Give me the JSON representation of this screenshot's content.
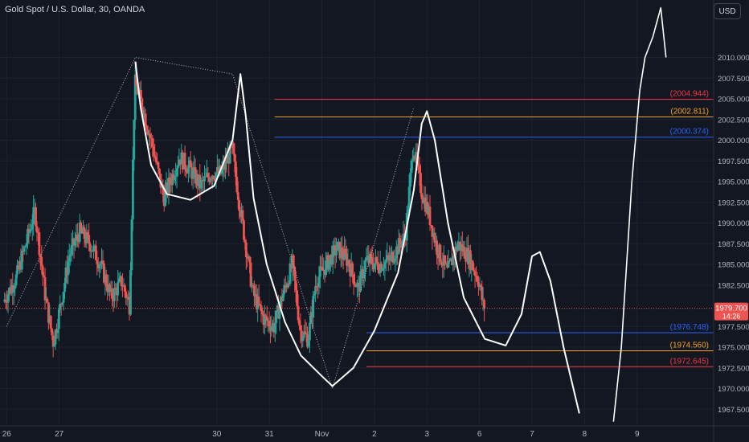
{
  "header": {
    "title": "Gold Spot / U.S. Dollar, 30, OANDA",
    "currency_label": "USD"
  },
  "colors": {
    "bg": "#131722",
    "bull": "#26a69a",
    "bear": "#ef5350",
    "grid": "#1e222d",
    "axis_text": "#b2b5be",
    "red_line": "#f23645",
    "orange_line": "#f7a21b",
    "blue_line": "#2962ff"
  },
  "chart_data": {
    "type": "candlestick",
    "title": "Gold Spot / U.S. Dollar, 30, OANDA",
    "ylim": [
      1965.0,
      2015.0
    ],
    "y_ticks": [
      2010.0,
      2007.5,
      2005.0,
      2002.5,
      2000.0,
      1997.5,
      1995.0,
      1992.5,
      1990.0,
      1987.5,
      1985.0,
      1982.5,
      1977.5,
      1975.0,
      1972.5,
      1970.0,
      1967.5
    ],
    "x_ticks": [
      {
        "label": "26",
        "x": 26
      },
      {
        "label": "27",
        "x": 27
      },
      {
        "label": "30",
        "x": 30
      },
      {
        "label": "31",
        "x": 31
      },
      {
        "label": "Nov",
        "x": 32
      },
      {
        "label": "2",
        "x": 33
      },
      {
        "label": "3",
        "x": 34
      },
      {
        "label": "6",
        "x": 35
      },
      {
        "label": "7",
        "x": 36
      },
      {
        "label": "8",
        "x": 37
      },
      {
        "label": "9",
        "x": 38
      }
    ],
    "x_range": [
      25.95,
      38.6
    ],
    "current_price": {
      "value": "1979.700",
      "countdown": "14:26",
      "y": 1979.7
    },
    "levels": [
      {
        "label": "(2004.944)",
        "value": 2004.944,
        "color": "#f23645",
        "x_start": 31.1
      },
      {
        "label": "(2002.811)",
        "value": 2002.811,
        "color": "#f7a21b",
        "x_start": 31.1
      },
      {
        "label": "(2000.374)",
        "value": 2000.374,
        "color": "#2962ff",
        "x_start": 31.1
      },
      {
        "label": "(1976.748)",
        "value": 1976.748,
        "color": "#2962ff",
        "x_start": 32.85
      },
      {
        "label": "(1974.560)",
        "value": 1974.56,
        "color": "#f7a21b",
        "x_start": 32.85
      },
      {
        "label": "(1972.645)",
        "value": 1972.645,
        "color": "#f23645",
        "x_start": 32.85
      }
    ],
    "price_path": [
      [
        25.95,
        1980.5
      ],
      [
        26.2,
        1983.5
      ],
      [
        26.4,
        1988.0
      ],
      [
        26.55,
        1991.5
      ],
      [
        26.75,
        1981.0
      ],
      [
        26.9,
        1975.5
      ],
      [
        27.05,
        1980.5
      ],
      [
        27.2,
        1986.0
      ],
      [
        27.4,
        1989.0
      ],
      [
        27.6,
        1987.5
      ],
      [
        27.8,
        1985.0
      ],
      [
        28.0,
        1981.0
      ],
      [
        28.2,
        1983.0
      ],
      [
        28.35,
        1980.0
      ],
      [
        28.45,
        2007.0
      ],
      [
        28.6,
        2004.0
      ],
      [
        28.8,
        1999.0
      ],
      [
        29.0,
        1993.0
      ],
      [
        29.3,
        1998.0
      ],
      [
        29.5,
        1996.5
      ],
      [
        29.7,
        1994.5
      ],
      [
        29.9,
        1996.0
      ],
      [
        30.1,
        1996.0
      ],
      [
        30.3,
        1999.0
      ],
      [
        30.45,
        1992.0
      ],
      [
        30.7,
        1981.5
      ],
      [
        30.9,
        1978.5
      ],
      [
        31.1,
        1977.5
      ],
      [
        31.25,
        1981.0
      ],
      [
        31.45,
        1985.0
      ],
      [
        31.6,
        1977.0
      ],
      [
        31.75,
        1976.0
      ],
      [
        31.9,
        1983.0
      ],
      [
        32.1,
        1985.0
      ],
      [
        32.3,
        1987.0
      ],
      [
        32.5,
        1985.5
      ],
      [
        32.7,
        1982.0
      ],
      [
        32.85,
        1985.5
      ],
      [
        33.1,
        1985.0
      ],
      [
        33.3,
        1985.5
      ],
      [
        33.45,
        1987.0
      ],
      [
        33.6,
        1988.5
      ],
      [
        33.75,
        1999.5
      ],
      [
        33.9,
        1994.0
      ],
      [
        34.05,
        1991.0
      ],
      [
        34.2,
        1987.0
      ],
      [
        34.4,
        1984.0
      ],
      [
        34.6,
        1987.5
      ],
      [
        34.8,
        1986.0
      ],
      [
        35.0,
        1983.0
      ],
      [
        35.08,
        1980.0
      ]
    ],
    "x_stretch": [
      [
        25.95,
        5
      ],
      [
        38.6,
        832
      ]
    ]
  }
}
